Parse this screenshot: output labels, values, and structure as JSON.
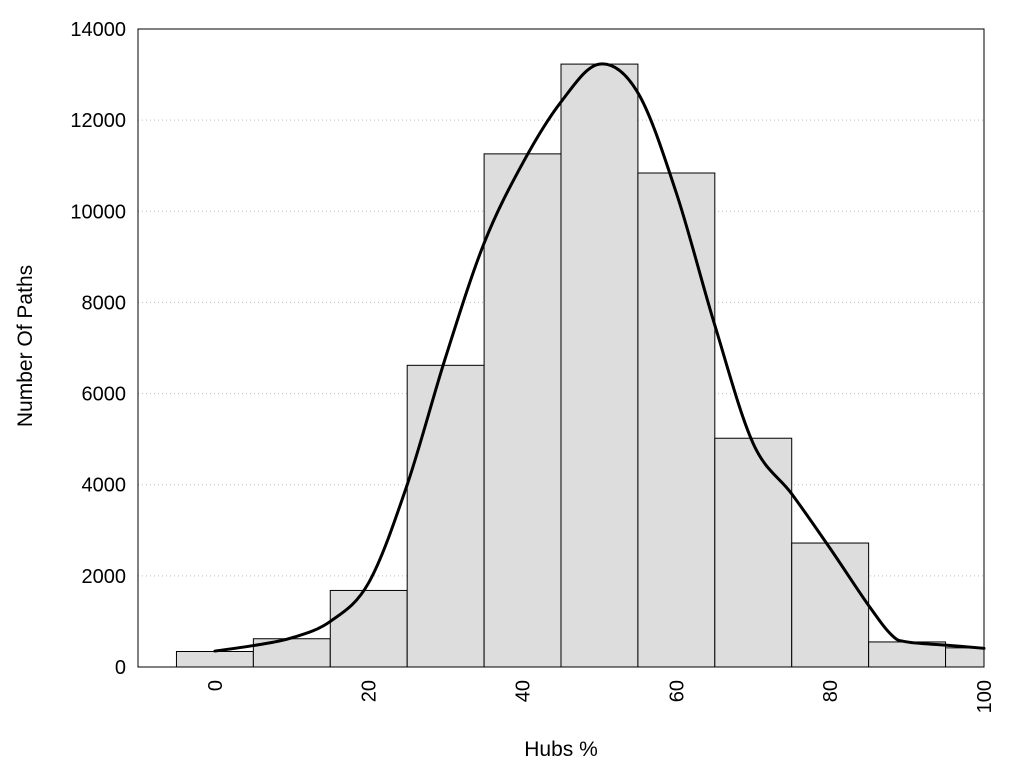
{
  "chart_data": {
    "type": "bar",
    "title": "",
    "xlabel": "Hubs %",
    "ylabel": "Number Of Paths",
    "xlim": [
      -10,
      100
    ],
    "ylim": [
      0,
      14000
    ],
    "grid": "horizontal dotted",
    "x_ticks": [
      0,
      20,
      40,
      60,
      80,
      100
    ],
    "y_ticks": [
      0,
      2000,
      4000,
      6000,
      8000,
      10000,
      12000,
      14000
    ],
    "bin_width": 10,
    "bins": [
      {
        "center": 0,
        "value": 340
      },
      {
        "center": 10,
        "value": 620
      },
      {
        "center": 20,
        "value": 1680
      },
      {
        "center": 30,
        "value": 6620
      },
      {
        "center": 40,
        "value": 11260
      },
      {
        "center": 50,
        "value": 13230
      },
      {
        "center": 60,
        "value": 10840
      },
      {
        "center": 70,
        "value": 5020
      },
      {
        "center": 80,
        "value": 2720
      },
      {
        "center": 90,
        "value": 550
      },
      {
        "center": 100,
        "value": 420
      }
    ],
    "curve": {
      "type": "density-line",
      "points": [
        [
          0,
          350
        ],
        [
          5,
          470
        ],
        [
          10,
          640
        ],
        [
          15,
          1000
        ],
        [
          20,
          1850
        ],
        [
          25,
          4000
        ],
        [
          30,
          6800
        ],
        [
          35,
          9300
        ],
        [
          40,
          11050
        ],
        [
          45,
          12400
        ],
        [
          50,
          13230
        ],
        [
          55,
          12600
        ],
        [
          60,
          10400
        ],
        [
          65,
          7500
        ],
        [
          70,
          4900
        ],
        [
          75,
          3800
        ],
        [
          80,
          2600
        ],
        [
          85,
          1350
        ],
        [
          88,
          700
        ],
        [
          90,
          550
        ],
        [
          95,
          480
        ],
        [
          100,
          410
        ]
      ]
    },
    "colors": {
      "bar_fill": "#dddddd",
      "bar_stroke": "#000000",
      "curve": "#000000"
    }
  }
}
